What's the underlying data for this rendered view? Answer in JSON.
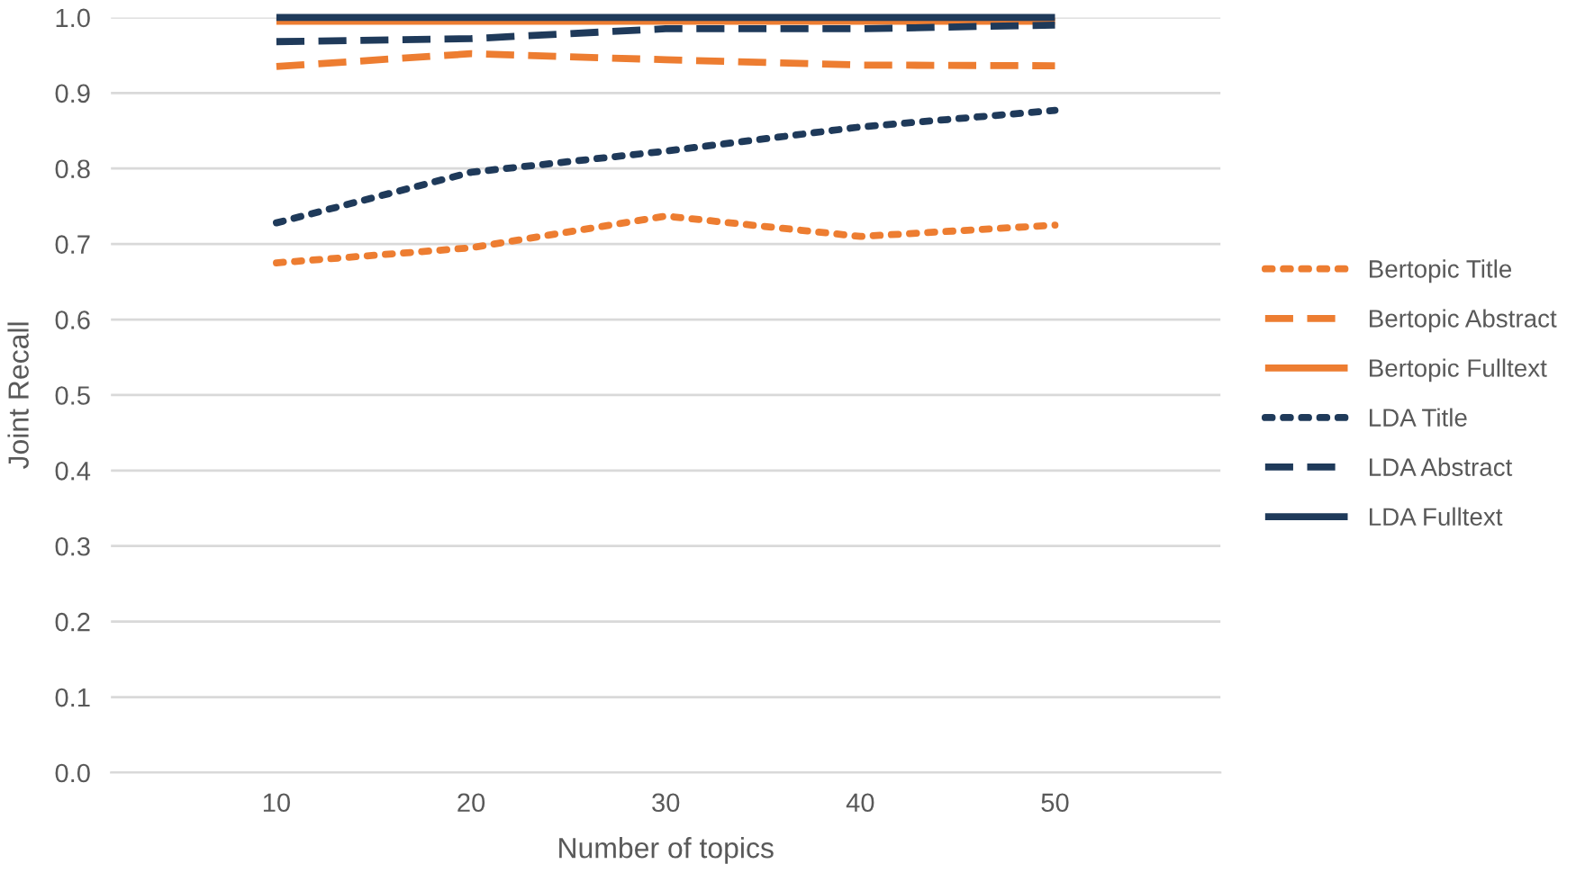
{
  "chart_data": {
    "type": "line",
    "xlabel": "Number of topics",
    "ylabel": "Joint Recall",
    "categories": [
      "10",
      "20",
      "30",
      "40",
      "50"
    ],
    "ylim": [
      0,
      1.0
    ],
    "yticks": [
      {
        "value": 0,
        "label": "0.0"
      },
      0.1,
      0.2,
      0.3,
      0.4,
      0.5,
      0.6,
      0.7,
      0.8,
      0.9,
      {
        "value": 1.0,
        "label": "1.0"
      }
    ],
    "grid": "y",
    "legend": "right",
    "marker": "none",
    "series": [
      {
        "name": "Bertopic Title",
        "color": "#ed7d31",
        "line_style": "dotted",
        "values": [
          0.675,
          0.695,
          0.737,
          0.71,
          0.725
        ]
      },
      {
        "name": "Bertopic Abstract",
        "color": "#ed7d31",
        "line_style": "dashed",
        "values": [
          0.935,
          0.952,
          0.944,
          0.937,
          0.936
        ]
      },
      {
        "name": "Bertopic Fulltext",
        "color": "#ed7d31",
        "line_style": "solid",
        "values": [
          0.995,
          0.995,
          0.995,
          0.995,
          0.995
        ]
      },
      {
        "name": "LDA Title",
        "color": "#1f3a5a",
        "line_style": "dotted",
        "values": [
          0.728,
          0.795,
          0.823,
          0.855,
          0.877
        ]
      },
      {
        "name": "LDA Abstract",
        "color": "#1f3a5a",
        "line_style": "dashed",
        "values": [
          0.968,
          0.972,
          0.985,
          0.985,
          0.99
        ]
      },
      {
        "name": "LDA Fulltext",
        "color": "#1f3a5a",
        "line_style": "solid",
        "values": [
          1.0,
          1.0,
          1.0,
          1.0,
          1.0
        ]
      }
    ]
  }
}
